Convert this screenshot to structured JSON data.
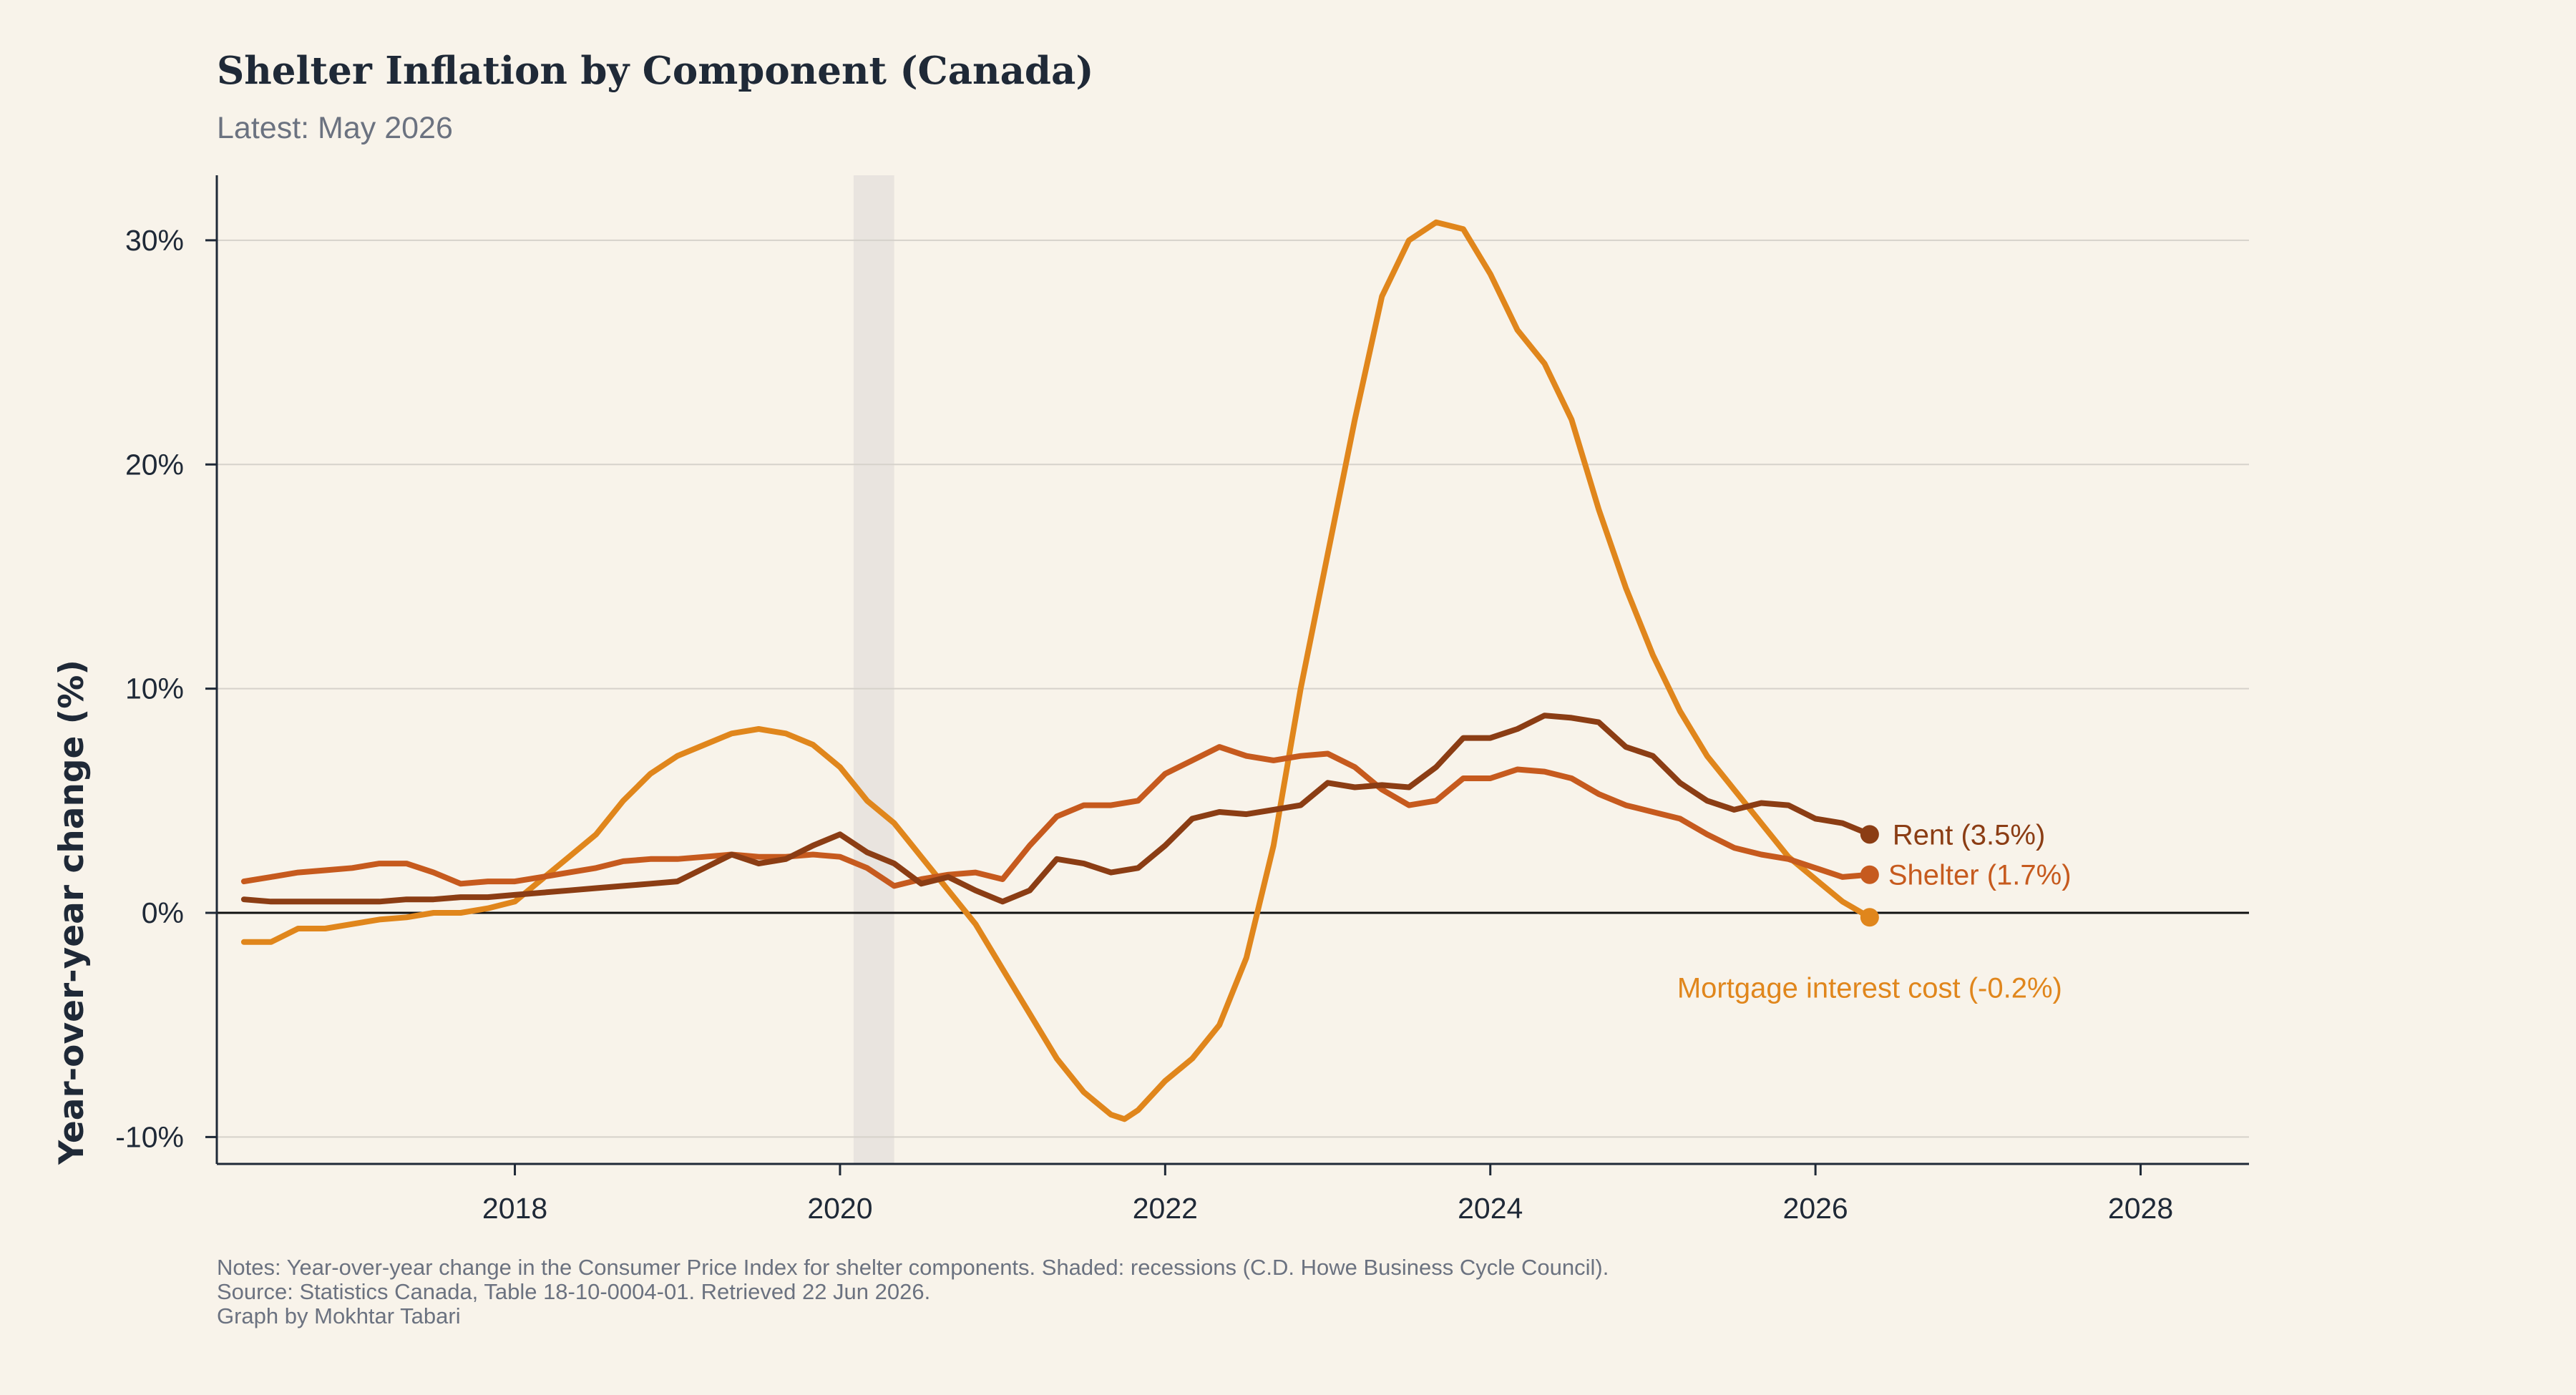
{
  "header": {
    "title": "Shelter Inflation by Component (Canada)",
    "subtitle": "Latest: May 2026"
  },
  "notes": {
    "line1": "Notes: Year-over-year change in the Consumer Price Index for shelter components. Shaded: recessions (C.D. Howe Business Cycle Council).",
    "line2": "Source: Statistics Canada, Table 18-10-0004-01. Retrieved 22 Jun 2026.",
    "line3": "Graph by Mokhtar Tabari"
  },
  "colors": {
    "background": "#f8f3ea",
    "rent": "#8b3d14",
    "shelter": "#c65a1e",
    "mortgage": "#e0861c",
    "recession": "#e9e4df",
    "grid": "#d6d2cb",
    "axis": "#1f2937"
  },
  "chart_data": {
    "type": "line",
    "title": "Shelter Inflation by Component (Canada)",
    "subtitle": "Latest: May 2026",
    "xlabel": "",
    "ylabel": "Year-over-year change (%)",
    "xlim": [
      "2016-03",
      "2028-09"
    ],
    "ylim": [
      -11.2,
      32.9
    ],
    "x_ticks": [
      {
        "label": "2018",
        "date": "2018-01"
      },
      {
        "label": "2020",
        "date": "2020-01"
      },
      {
        "label": "2022",
        "date": "2022-01"
      },
      {
        "label": "2024",
        "date": "2024-01"
      },
      {
        "label": "2026",
        "date": "2026-01"
      },
      {
        "label": "2028",
        "date": "2028-01"
      }
    ],
    "y_ticks": [
      {
        "label": "-10%",
        "value": -10
      },
      {
        "label": "0%",
        "value": 0
      },
      {
        "label": "10%",
        "value": 10
      },
      {
        "label": "20%",
        "value": 20
      },
      {
        "label": "30%",
        "value": 30
      }
    ],
    "grid": true,
    "zero_line": true,
    "recessions": [
      {
        "start": "2020-02",
        "end": "2020-05"
      }
    ],
    "series": [
      {
        "name": "Mortgage interest cost",
        "end_label": "Mortgage interest cost (-0.2%)",
        "color": "#e0861c",
        "points": [
          [
            "2016-05",
            -1.3
          ],
          [
            "2016-07",
            -1.3
          ],
          [
            "2016-09",
            -0.7
          ],
          [
            "2016-11",
            -0.7
          ],
          [
            "2017-01",
            -0.5
          ],
          [
            "2017-03",
            -0.3
          ],
          [
            "2017-05",
            -0.2
          ],
          [
            "2017-07",
            0.0
          ],
          [
            "2017-09",
            0.0
          ],
          [
            "2017-11",
            0.2
          ],
          [
            "2018-01",
            0.5
          ],
          [
            "2018-03",
            1.5
          ],
          [
            "2018-05",
            2.5
          ],
          [
            "2018-07",
            3.5
          ],
          [
            "2018-09",
            5.0
          ],
          [
            "2018-11",
            6.2
          ],
          [
            "2019-01",
            7.0
          ],
          [
            "2019-03",
            7.5
          ],
          [
            "2019-05",
            8.0
          ],
          [
            "2019-07",
            8.2
          ],
          [
            "2019-09",
            8.0
          ],
          [
            "2019-11",
            7.5
          ],
          [
            "2020-01",
            6.5
          ],
          [
            "2020-03",
            5.0
          ],
          [
            "2020-05",
            4.0
          ],
          [
            "2020-07",
            2.5
          ],
          [
            "2020-09",
            1.0
          ],
          [
            "2020-11",
            -0.5
          ],
          [
            "2021-01",
            -2.5
          ],
          [
            "2021-03",
            -4.5
          ],
          [
            "2021-05",
            -6.5
          ],
          [
            "2021-07",
            -8.0
          ],
          [
            "2021-09",
            -9.0
          ],
          [
            "2021-10",
            -9.2
          ],
          [
            "2021-11",
            -8.8
          ],
          [
            "2022-01",
            -7.5
          ],
          [
            "2022-03",
            -6.5
          ],
          [
            "2022-05",
            -5.0
          ],
          [
            "2022-07",
            -2.0
          ],
          [
            "2022-09",
            3.0
          ],
          [
            "2022-11",
            10.0
          ],
          [
            "2023-01",
            16.0
          ],
          [
            "2023-03",
            22.0
          ],
          [
            "2023-05",
            27.5
          ],
          [
            "2023-07",
            30.0
          ],
          [
            "2023-09",
            30.8
          ],
          [
            "2023-11",
            30.5
          ],
          [
            "2024-01",
            28.5
          ],
          [
            "2024-03",
            26.0
          ],
          [
            "2024-05",
            24.5
          ],
          [
            "2024-07",
            22.0
          ],
          [
            "2024-09",
            18.0
          ],
          [
            "2024-11",
            14.5
          ],
          [
            "2025-01",
            11.5
          ],
          [
            "2025-03",
            9.0
          ],
          [
            "2025-05",
            7.0
          ],
          [
            "2025-07",
            5.5
          ],
          [
            "2025-09",
            4.0
          ],
          [
            "2025-11",
            2.5
          ],
          [
            "2026-01",
            1.5
          ],
          [
            "2026-03",
            0.5
          ],
          [
            "2026-05",
            -0.2
          ]
        ]
      },
      {
        "name": "Shelter",
        "end_label": "Shelter (1.7%)",
        "color": "#c65a1e",
        "points": [
          [
            "2016-05",
            1.4
          ],
          [
            "2016-07",
            1.6
          ],
          [
            "2016-09",
            1.8
          ],
          [
            "2016-11",
            1.9
          ],
          [
            "2017-01",
            2.0
          ],
          [
            "2017-03",
            2.2
          ],
          [
            "2017-05",
            2.2
          ],
          [
            "2017-07",
            1.8
          ],
          [
            "2017-09",
            1.3
          ],
          [
            "2017-11",
            1.4
          ],
          [
            "2018-01",
            1.4
          ],
          [
            "2018-03",
            1.6
          ],
          [
            "2018-05",
            1.8
          ],
          [
            "2018-07",
            2.0
          ],
          [
            "2018-09",
            2.3
          ],
          [
            "2018-11",
            2.4
          ],
          [
            "2019-01",
            2.4
          ],
          [
            "2019-03",
            2.5
          ],
          [
            "2019-05",
            2.6
          ],
          [
            "2019-07",
            2.5
          ],
          [
            "2019-09",
            2.5
          ],
          [
            "2019-11",
            2.6
          ],
          [
            "2020-01",
            2.5
          ],
          [
            "2020-03",
            2.0
          ],
          [
            "2020-05",
            1.2
          ],
          [
            "2020-07",
            1.5
          ],
          [
            "2020-09",
            1.7
          ],
          [
            "2020-11",
            1.8
          ],
          [
            "2021-01",
            1.5
          ],
          [
            "2021-03",
            3.0
          ],
          [
            "2021-05",
            4.3
          ],
          [
            "2021-07",
            4.8
          ],
          [
            "2021-09",
            4.8
          ],
          [
            "2021-11",
            5.0
          ],
          [
            "2022-01",
            6.2
          ],
          [
            "2022-03",
            6.8
          ],
          [
            "2022-05",
            7.4
          ],
          [
            "2022-07",
            7.0
          ],
          [
            "2022-09",
            6.8
          ],
          [
            "2022-11",
            7.0
          ],
          [
            "2023-01",
            7.1
          ],
          [
            "2023-03",
            6.5
          ],
          [
            "2023-05",
            5.5
          ],
          [
            "2023-07",
            4.8
          ],
          [
            "2023-09",
            5.0
          ],
          [
            "2023-11",
            6.0
          ],
          [
            "2024-01",
            6.0
          ],
          [
            "2024-03",
            6.4
          ],
          [
            "2024-05",
            6.3
          ],
          [
            "2024-07",
            6.0
          ],
          [
            "2024-09",
            5.3
          ],
          [
            "2024-11",
            4.8
          ],
          [
            "2025-01",
            4.5
          ],
          [
            "2025-03",
            4.2
          ],
          [
            "2025-05",
            3.5
          ],
          [
            "2025-07",
            2.9
          ],
          [
            "2025-09",
            2.6
          ],
          [
            "2025-11",
            2.4
          ],
          [
            "2026-01",
            2.0
          ],
          [
            "2026-03",
            1.6
          ],
          [
            "2026-05",
            1.7
          ]
        ]
      },
      {
        "name": "Rent",
        "end_label": "Rent (3.5%)",
        "color": "#8b3d14",
        "points": [
          [
            "2016-05",
            0.6
          ],
          [
            "2016-07",
            0.5
          ],
          [
            "2016-09",
            0.5
          ],
          [
            "2016-11",
            0.5
          ],
          [
            "2017-01",
            0.5
          ],
          [
            "2017-03",
            0.5
          ],
          [
            "2017-05",
            0.6
          ],
          [
            "2017-07",
            0.6
          ],
          [
            "2017-09",
            0.7
          ],
          [
            "2017-11",
            0.7
          ],
          [
            "2018-01",
            0.8
          ],
          [
            "2018-03",
            0.9
          ],
          [
            "2018-05",
            1.0
          ],
          [
            "2018-07",
            1.1
          ],
          [
            "2018-09",
            1.2
          ],
          [
            "2018-11",
            1.3
          ],
          [
            "2019-01",
            1.4
          ],
          [
            "2019-03",
            2.0
          ],
          [
            "2019-05",
            2.6
          ],
          [
            "2019-07",
            2.2
          ],
          [
            "2019-09",
            2.4
          ],
          [
            "2019-11",
            3.0
          ],
          [
            "2020-01",
            3.5
          ],
          [
            "2020-03",
            2.7
          ],
          [
            "2020-05",
            2.2
          ],
          [
            "2020-07",
            1.3
          ],
          [
            "2020-09",
            1.6
          ],
          [
            "2020-11",
            1.0
          ],
          [
            "2021-01",
            0.5
          ],
          [
            "2021-03",
            1.0
          ],
          [
            "2021-05",
            2.4
          ],
          [
            "2021-07",
            2.2
          ],
          [
            "2021-09",
            1.8
          ],
          [
            "2021-11",
            2.0
          ],
          [
            "2022-01",
            3.0
          ],
          [
            "2022-03",
            4.2
          ],
          [
            "2022-05",
            4.5
          ],
          [
            "2022-07",
            4.4
          ],
          [
            "2022-09",
            4.6
          ],
          [
            "2022-11",
            4.8
          ],
          [
            "2023-01",
            5.8
          ],
          [
            "2023-03",
            5.6
          ],
          [
            "2023-05",
            5.7
          ],
          [
            "2023-07",
            5.6
          ],
          [
            "2023-09",
            6.5
          ],
          [
            "2023-11",
            7.8
          ],
          [
            "2024-01",
            7.8
          ],
          [
            "2024-03",
            8.2
          ],
          [
            "2024-05",
            8.8
          ],
          [
            "2024-07",
            8.7
          ],
          [
            "2024-09",
            8.5
          ],
          [
            "2024-11",
            7.4
          ],
          [
            "2025-01",
            7.0
          ],
          [
            "2025-03",
            5.8
          ],
          [
            "2025-05",
            5.0
          ],
          [
            "2025-07",
            4.6
          ],
          [
            "2025-09",
            4.9
          ],
          [
            "2025-11",
            4.8
          ],
          [
            "2026-01",
            4.2
          ],
          [
            "2026-03",
            4.0
          ],
          [
            "2026-05",
            3.5
          ]
        ]
      }
    ]
  }
}
